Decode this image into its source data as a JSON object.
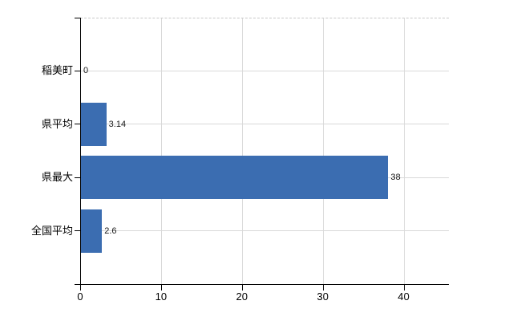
{
  "chart_data": {
    "type": "bar",
    "orientation": "horizontal",
    "title": "",
    "categories": [
      "稲美町",
      "県平均",
      "県最大",
      "全国平均"
    ],
    "values": [
      0,
      3.14,
      38,
      2.6
    ],
    "value_labels": [
      "0",
      "3.14",
      "38",
      "2.6"
    ],
    "xticks": [
      0,
      10,
      20,
      30,
      40
    ],
    "xtick_labels": [
      "0",
      "10",
      "20",
      "30",
      "40"
    ],
    "xlim": [
      0,
      45.6
    ],
    "grid": true,
    "legend": false,
    "bar_color": "#3B6DB1",
    "grid_color": "#D9D9D9",
    "top_border_color": "#C9C9C9",
    "axis_color": "#000000",
    "text_color": "#000000",
    "background_color": "#FFFFFF"
  }
}
